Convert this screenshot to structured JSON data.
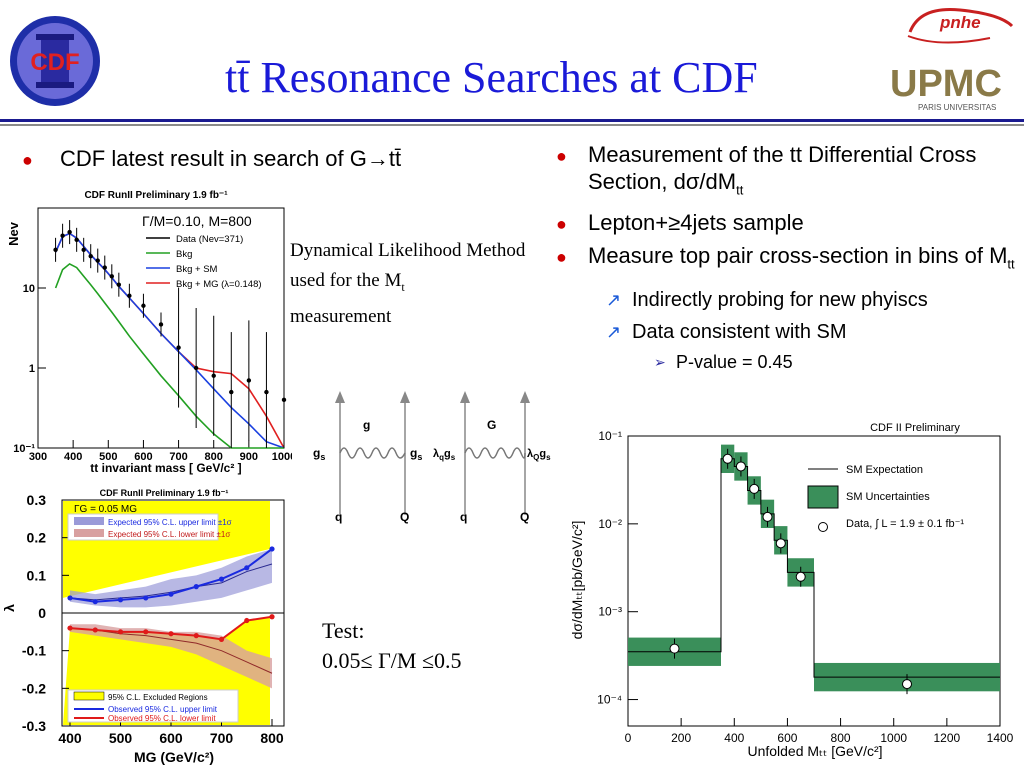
{
  "slide": {
    "title": "tt̄ Resonance Searches at CDF",
    "logo_cdf": "CDF",
    "logo_pnhe": "pnhe",
    "logo_upmc": "UPMC",
    "logo_upmc_sub": "PARIS UNIVERSITAS"
  },
  "left": {
    "bullet": "CDF latest result in search of G→tt̄",
    "annotation": "Dynamical Likelihood Method used for the M",
    "annotation_sub": "t",
    "annotation_end": "measurement",
    "test_label": "Test:",
    "test_value": "0.05≤ Γ/M ≤0.5"
  },
  "right": {
    "bullets": [
      {
        "text": "Measurement of the tt Differential Cross Section, dσ/dM",
        "sub": "tt"
      },
      {
        "text": "Lepton+≥4jets sample"
      },
      {
        "text": "Measure top pair cross-section in bins of M",
        "sub": "tt"
      }
    ],
    "subbullets": [
      "Indirectly probing for new phyiscs",
      "Data consistent with SM"
    ],
    "subsub": "P-value = 0.45"
  },
  "feynman": {
    "left": {
      "top": "g",
      "gs_left": "g",
      "gs_left_sub": "s",
      "gs_right": "g",
      "gs_right_sub": "s",
      "q": "q",
      "Q": "Q"
    },
    "right": {
      "top": "G",
      "lam_left": "λ",
      "lam_left_sub": "q",
      "g_left": "g",
      "g_left_sub": "s",
      "lam_right": "λ",
      "lam_right_sub": "Q",
      "g_right": "g",
      "g_right_sub": "s",
      "q": "q",
      "Q": "Q"
    }
  },
  "chart_data": [
    {
      "type": "line",
      "title": "CDF RunII Preliminary 1.9 fb⁻¹",
      "annotation": "Γ/M=0.10, M=800",
      "xlabel": "tt invariant mass [ GeV/c² ]",
      "ylabel": "Nev",
      "xlim": [
        300,
        1000
      ],
      "ylim_log": [
        0.1,
        100
      ],
      "log_y": true,
      "x_ticks": [
        300,
        400,
        500,
        600,
        700,
        800,
        900,
        1000
      ],
      "y_ticks": [
        {
          "v": 0.1,
          "label": "10⁻¹"
        },
        {
          "v": 1,
          "label": "1"
        },
        {
          "v": 10,
          "label": "10"
        }
      ],
      "legend": [
        "Data (Nev=371)",
        "Bkg",
        "Bkg + SM",
        "Bkg + MG (λ=0.148)"
      ],
      "colors": {
        "data": "#000000",
        "bkg": "#22a022",
        "bkgsm": "#1a40e0",
        "bkgmg": "#e02020"
      },
      "x": [
        350,
        370,
        390,
        410,
        430,
        450,
        470,
        490,
        510,
        530,
        560,
        600,
        650,
        700,
        750,
        800,
        850,
        900,
        950,
        1000
      ],
      "series": [
        {
          "name": "Data (Nev=371)",
          "values": [
            30,
            45,
            50,
            40,
            30,
            25,
            22,
            18,
            14,
            11,
            8,
            6,
            3.5,
            1.8,
            1.0,
            0.8,
            0.5,
            0.7,
            0.5,
            0.4
          ]
        },
        {
          "name": "Bkg",
          "values": [
            10,
            17,
            20,
            18,
            14,
            11,
            8.5,
            6.5,
            5,
            3.8,
            2.5,
            1.5,
            0.8,
            0.45,
            0.25,
            0.15,
            0.1,
            0.1,
            0.1,
            0.1
          ]
        },
        {
          "name": "Bkg + SM",
          "values": [
            28,
            44,
            48,
            42,
            33,
            26,
            21,
            17,
            13.5,
            10.5,
            7.5,
            4.8,
            2.7,
            1.6,
            0.95,
            0.55,
            0.32,
            0.2,
            0.12,
            0.1
          ]
        },
        {
          "name": "Bkg + MG (λ=0.148)",
          "values": [
            28,
            44,
            48,
            42,
            33,
            26,
            21,
            17,
            13.5,
            10.5,
            7.5,
            4.8,
            2.7,
            1.6,
            1.0,
            0.9,
            0.85,
            0.55,
            0.25,
            0.1
          ]
        }
      ]
    },
    {
      "type": "line",
      "title": "CDF RunII Preliminary 1.9 fb⁻¹",
      "annotation": "ΓG = 0.05 MG",
      "xlabel": "MG (GeV/c²)",
      "ylabel": "λ",
      "xlim": [
        400,
        800
      ],
      "ylim": [
        -0.3,
        0.3
      ],
      "x_ticks": [
        400,
        500,
        600,
        700,
        800
      ],
      "y_ticks": [
        -0.3,
        -0.2,
        -0.1,
        0,
        0.1,
        0.2,
        0.3
      ],
      "legend": [
        "Expected 95% C.L. upper limit ±1σ",
        "Expected 95% C.L. lower limit ±1σ",
        "95% C.L. Excluded Regions",
        "Observed 95% C.L. upper limit",
        "Observed 95% C.L. lower limit"
      ],
      "x": [
        400,
        450,
        500,
        550,
        600,
        650,
        700,
        750,
        800
      ],
      "series": [
        {
          "name": "Observed 95% C.L. upper limit",
          "values": [
            0.04,
            0.03,
            0.035,
            0.04,
            0.05,
            0.07,
            0.09,
            0.12,
            0.17
          ]
        },
        {
          "name": "Observed 95% C.L. lower limit",
          "values": [
            -0.04,
            -0.045,
            -0.05,
            -0.05,
            -0.055,
            -0.06,
            -0.07,
            -0.02,
            -0.01
          ]
        }
      ]
    },
    {
      "type": "line",
      "title": "CDF II Preliminary",
      "xlabel": "Unfolded Mₜₜ [GeV/c²]",
      "ylabel": "dσ/dMₜₜ[pb/GeV/c²]",
      "xlim": [
        0,
        1400
      ],
      "ylim_log": [
        5e-05,
        0.1
      ],
      "log_y": true,
      "x_ticks": [
        0,
        200,
        400,
        600,
        800,
        1000,
        1200,
        1400
      ],
      "y_ticks": [
        {
          "v": 0.0001,
          "label": "10⁻⁴"
        },
        {
          "v": 0.001,
          "label": "10⁻³"
        },
        {
          "v": 0.01,
          "label": "10⁻²"
        },
        {
          "v": 0.1,
          "label": "10⁻¹"
        }
      ],
      "legend": [
        "SM Expectation",
        "SM Uncertainties",
        "Data, ∫ L = 1.9 ± 0.1 fb⁻¹"
      ],
      "bins": [
        [
          0,
          350
        ],
        [
          350,
          400
        ],
        [
          400,
          450
        ],
        [
          450,
          500
        ],
        [
          500,
          550
        ],
        [
          550,
          600
        ],
        [
          600,
          700
        ],
        [
          700,
          1400
        ]
      ],
      "series": [
        {
          "name": "SM Expectation",
          "values": [
            0.00035,
            0.055,
            0.045,
            0.024,
            0.013,
            0.0065,
            0.0028,
            0.00018
          ]
        },
        {
          "name": "Data",
          "x": [
            175,
            375,
            425,
            475,
            525,
            575,
            650,
            1050
          ],
          "values": [
            0.00038,
            0.055,
            0.045,
            0.025,
            0.012,
            0.006,
            0.0025,
            0.00015
          ]
        }
      ]
    }
  ]
}
